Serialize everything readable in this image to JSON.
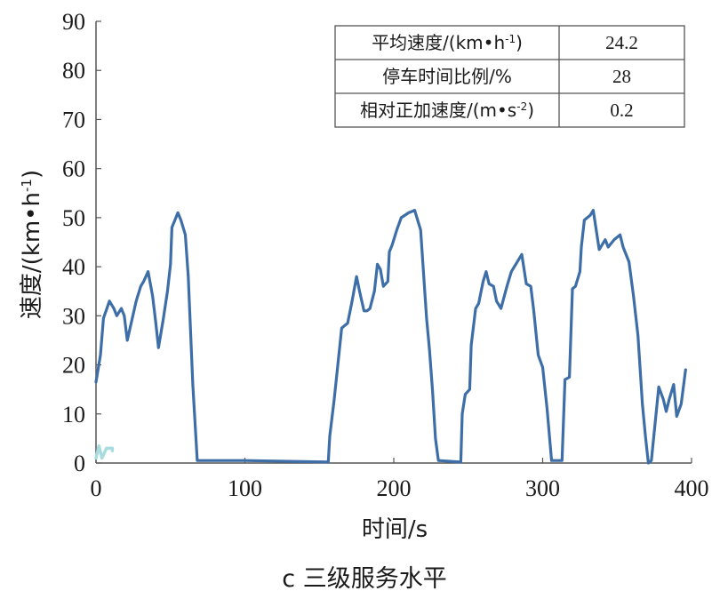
{
  "chart_data": {
    "type": "line",
    "xlabel": "时间/s",
    "ylabel_main": "速度/(km•h",
    "ylabel_sup": "-1",
    "ylabel_close": ")",
    "caption": "c 三级服务水平",
    "xlim": [
      0,
      400
    ],
    "ylim": [
      0,
      90
    ],
    "x_ticks": [
      0,
      100,
      200,
      300,
      400
    ],
    "y_ticks": [
      0,
      10,
      20,
      30,
      40,
      50,
      60,
      70,
      80,
      90
    ],
    "grid": false,
    "series": [
      {
        "color": "#3d6ea8",
        "points": [
          [
            0,
            16.5
          ],
          [
            3,
            22
          ],
          [
            5,
            29.5
          ],
          [
            9,
            33
          ],
          [
            12,
            31.5
          ],
          [
            14,
            30
          ],
          [
            17,
            31.5
          ],
          [
            19,
            30
          ],
          [
            21,
            25
          ],
          [
            24,
            29
          ],
          [
            27,
            33
          ],
          [
            30,
            36
          ],
          [
            32,
            37
          ],
          [
            35,
            39
          ],
          [
            38,
            34
          ],
          [
            40,
            29
          ],
          [
            42,
            23.5
          ],
          [
            45,
            29
          ],
          [
            48,
            35
          ],
          [
            50,
            40.5
          ],
          [
            51,
            48
          ],
          [
            53,
            49.5
          ],
          [
            55,
            51
          ],
          [
            57,
            49.5
          ],
          [
            60,
            46.5
          ],
          [
            62,
            38
          ],
          [
            65,
            16
          ],
          [
            68,
            0.5
          ],
          [
            100,
            0.5
          ],
          [
            156,
            0.2
          ],
          [
            157,
            5.5
          ],
          [
            160,
            13
          ],
          [
            165,
            27.5
          ],
          [
            169,
            28.5
          ],
          [
            172,
            33
          ],
          [
            175,
            38
          ],
          [
            177,
            35
          ],
          [
            180,
            31
          ],
          [
            182,
            31
          ],
          [
            184,
            31.5
          ],
          [
            187,
            35
          ],
          [
            189,
            40.5
          ],
          [
            191,
            39.5
          ],
          [
            193,
            36
          ],
          [
            196,
            37
          ],
          [
            197,
            43
          ],
          [
            199,
            44.5
          ],
          [
            202,
            47.5
          ],
          [
            205,
            50
          ],
          [
            210,
            51
          ],
          [
            214,
            51.5
          ],
          [
            218,
            47.5
          ],
          [
            222,
            29.5
          ],
          [
            224,
            23
          ],
          [
            226,
            15
          ],
          [
            228,
            5
          ],
          [
            230,
            0.5
          ],
          [
            245,
            0.2
          ],
          [
            246,
            10
          ],
          [
            248,
            14
          ],
          [
            251,
            15
          ],
          [
            252,
            24
          ],
          [
            255,
            31.5
          ],
          [
            257,
            32.5
          ],
          [
            260,
            37
          ],
          [
            262,
            39
          ],
          [
            264,
            36.5
          ],
          [
            267,
            36
          ],
          [
            269,
            33
          ],
          [
            272,
            31.5
          ],
          [
            276,
            36
          ],
          [
            278,
            38
          ],
          [
            279,
            39
          ],
          [
            283,
            41
          ],
          [
            286,
            42.5
          ],
          [
            289,
            36.5
          ],
          [
            292,
            36
          ],
          [
            294,
            31
          ],
          [
            297,
            22
          ],
          [
            300,
            19.5
          ],
          [
            303,
            11
          ],
          [
            306,
            0.5
          ],
          [
            313,
            0.5
          ],
          [
            315,
            17
          ],
          [
            318,
            17.5
          ],
          [
            320,
            35.5
          ],
          [
            322,
            36
          ],
          [
            325,
            39
          ],
          [
            326,
            44
          ],
          [
            328,
            49.5
          ],
          [
            332,
            50.5
          ],
          [
            334,
            51.5
          ],
          [
            338,
            43.5
          ],
          [
            342,
            45.5
          ],
          [
            344,
            44
          ],
          [
            348,
            45.5
          ],
          [
            352,
            46.5
          ],
          [
            354,
            44
          ],
          [
            358,
            41
          ],
          [
            361,
            34
          ],
          [
            364,
            26
          ],
          [
            367,
            12
          ],
          [
            369,
            5.5
          ],
          [
            371,
            0
          ],
          [
            373,
            0.5
          ],
          [
            378,
            15.5
          ],
          [
            381,
            13
          ],
          [
            383,
            10.5
          ],
          [
            385,
            13
          ],
          [
            388,
            16
          ],
          [
            390,
            9.5
          ],
          [
            393,
            12
          ],
          [
            396,
            19
          ]
        ]
      },
      {
        "color": "#a9dce0",
        "points": [
          [
            0,
            1
          ],
          [
            2,
            3.5
          ],
          [
            4,
            1
          ],
          [
            7,
            3
          ],
          [
            11,
            3
          ],
          [
            11,
            2.5
          ]
        ]
      }
    ],
    "table": {
      "position": "top-right",
      "rows": [
        {
          "label_main": "平均速度/(km•h",
          "label_sup": "-1",
          "label_close": ")",
          "value": "24.2"
        },
        {
          "label_main": "停车时间比例/%",
          "label_sup": "",
          "label_close": "",
          "value": "28"
        },
        {
          "label_main": "相对正加速度/(m•s",
          "label_sup": "-2",
          "label_close": ")",
          "value": "0.2"
        }
      ]
    }
  }
}
